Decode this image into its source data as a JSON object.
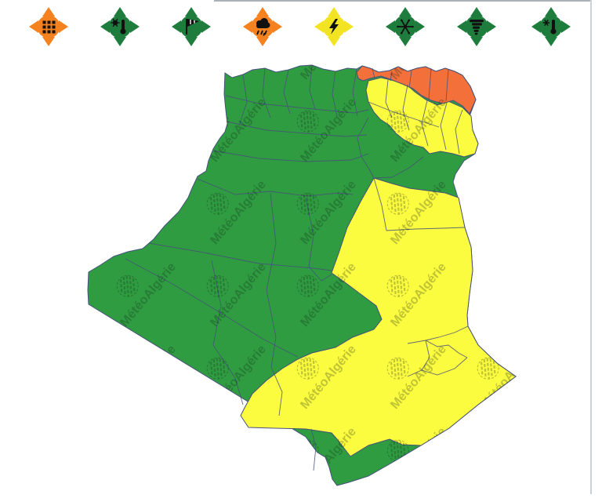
{
  "app": {
    "title": "weather-vigilance-map"
  },
  "frame": {
    "top_border_color": "#aab2b8",
    "right_border_color": "#cdd2d6"
  },
  "alert_bar": {
    "icons": [
      {
        "id": "sand-dust",
        "glyph": "grid",
        "color": "#F5821E",
        "level": "orange"
      },
      {
        "id": "heat-wave",
        "glyph": "sun-thermometer",
        "color": "#1E7D3D",
        "level": "green"
      },
      {
        "id": "wind",
        "glyph": "windsock",
        "color": "#1E7D3D",
        "level": "green"
      },
      {
        "id": "rain",
        "glyph": "rain-cloud",
        "color": "#F5821E",
        "level": "orange"
      },
      {
        "id": "thunderstorm",
        "glyph": "lightning",
        "color": "#F2E422",
        "level": "yellow"
      },
      {
        "id": "snow",
        "glyph": "snowflake",
        "color": "#1E7D3D",
        "level": "green"
      },
      {
        "id": "tornado",
        "glyph": "tornado",
        "color": "#1E7D3D",
        "level": "green"
      },
      {
        "id": "cold-wave",
        "glyph": "cold-thermometer",
        "color": "#1E7D3D",
        "level": "green"
      }
    ],
    "glyph_color": "#111111"
  },
  "map": {
    "watermark_text": "MétéoAlgérie",
    "colors": {
      "green": "#2F9C41",
      "yellow": "#FBFB3F",
      "orange": "#F4703A",
      "border": "#46517A",
      "watermark": "rgba(20,35,25,0.26)"
    },
    "regions": [
      {
        "name": "west-center-north",
        "level": "green"
      },
      {
        "name": "northeast-coast",
        "level": "orange"
      },
      {
        "name": "northeast-inland",
        "level": "yellow"
      },
      {
        "name": "east-southeast",
        "level": "yellow"
      }
    ]
  }
}
